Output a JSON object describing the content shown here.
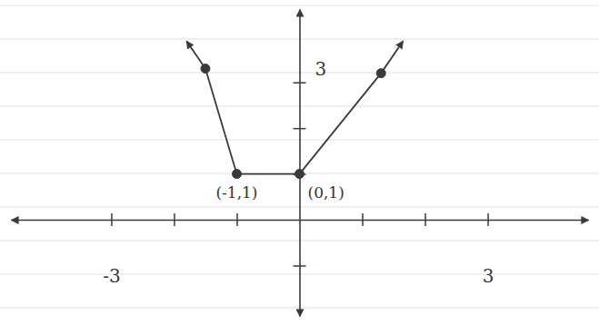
{
  "chart_data": {
    "type": "line",
    "x": [
      -1.8,
      -1.5,
      -1,
      0,
      1.3,
      1.65
    ],
    "series": [
      {
        "type": "line",
        "color": "#3a3a3a",
        "marker": "arrow",
        "line_style": "solid",
        "values": [
          3.9,
          3.3,
          1,
          1,
          3.2,
          3.9
        ]
      },
      {
        "type": "scatter",
        "color": "#3a3a3a",
        "marker": "dot",
        "values": [
          null,
          3.3,
          1,
          1,
          3.2,
          null
        ]
      }
    ],
    "xlim": [
      -4.6,
      4.6
    ],
    "xticks": [
      {
        "value": -3,
        "label": "-3"
      },
      {
        "value": -2,
        "label": null
      },
      {
        "value": -1,
        "label": null
      },
      {
        "value": 1,
        "label": null
      },
      {
        "value": 2,
        "label": null
      },
      {
        "value": 3,
        "label": "3"
      }
    ],
    "ylim": [
      -2.1,
      4.6
    ],
    "yticks": [
      {
        "value": -1,
        "label": null
      },
      {
        "value": 1,
        "label": null
      },
      {
        "value": 2,
        "label": null
      },
      3
    ],
    "annotations": [
      {
        "text": "(-1,1)",
        "x": -1,
        "y": 1
      },
      {
        "text": "(0,1)",
        "x": 0,
        "y": 1
      }
    ]
  }
}
